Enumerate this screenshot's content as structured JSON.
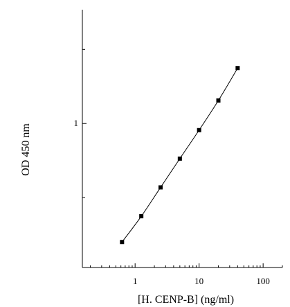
{
  "chart_data": {
    "type": "line",
    "x_scale": "log",
    "y_scale": "log",
    "xlabel": "[H. CENP-B] (ng/ml)",
    "ylabel": "OD 450 nm",
    "x_tick_labels": [
      {
        "value": 1,
        "label": "1"
      },
      {
        "value": 10,
        "label": "10"
      },
      {
        "value": 100,
        "label": "100"
      }
    ],
    "y_tick_labels": [
      {
        "value": 1,
        "label": "1"
      }
    ],
    "xlim": [
      0.15,
      200
    ],
    "ylim": [
      0.26,
      2.9
    ],
    "grid": false,
    "series": [
      {
        "x": [
          0.625,
          1.25,
          2.5,
          5,
          10,
          20,
          40
        ],
        "y": [
          0.33,
          0.42,
          0.55,
          0.72,
          0.94,
          1.24,
          1.68
        ],
        "marker": "square",
        "color": "#000000"
      }
    ]
  }
}
